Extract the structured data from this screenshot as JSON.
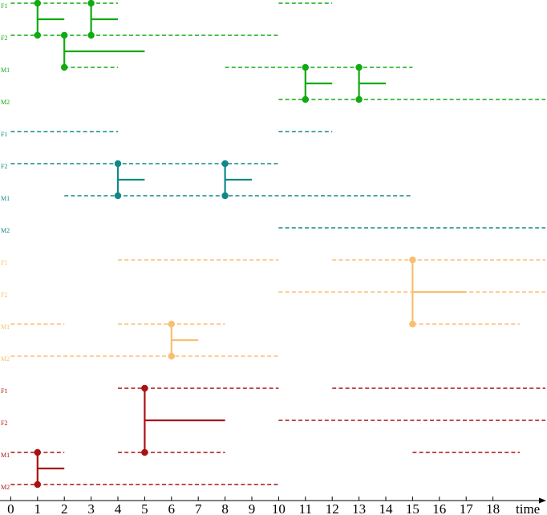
{
  "axis": {
    "label": "time",
    "ticks": [
      "0",
      "1",
      "2",
      "3",
      "4",
      "5",
      "6",
      "7",
      "8",
      "9",
      "10",
      "11",
      "12",
      "13",
      "14",
      "15",
      "16",
      "17",
      "18"
    ]
  },
  "groups": [
    {
      "id": "green",
      "color": "#11aa11",
      "rows": [
        {
          "label": "F1",
          "segments": [
            [
              0,
              4
            ],
            [
              10,
              12
            ]
          ]
        },
        {
          "label": "F2",
          "segments": [
            [
              0,
              10
            ]
          ]
        },
        {
          "label": "M1",
          "segments": [
            [
              2,
              4
            ],
            [
              8,
              15
            ]
          ]
        },
        {
          "label": "M2",
          "segments": [
            [
              10,
              20
            ]
          ]
        }
      ],
      "events": [
        {
          "t": 1,
          "from": 0,
          "to": 1,
          "end": 2
        },
        {
          "t": 3,
          "from": 0,
          "to": 1,
          "end": 4
        },
        {
          "t": 2,
          "from": 1,
          "to": 2,
          "end": 5
        },
        {
          "t": 11,
          "from": 2,
          "to": 3,
          "end": 12
        },
        {
          "t": 13,
          "from": 2,
          "to": 3,
          "end": 14
        }
      ]
    },
    {
      "id": "teal",
      "color": "#118888",
      "rows": [
        {
          "label": "F1",
          "segments": [
            [
              0,
              4
            ],
            [
              10,
              12
            ]
          ]
        },
        {
          "label": "F2",
          "segments": [
            [
              0,
              10
            ]
          ]
        },
        {
          "label": "M1",
          "segments": [
            [
              2,
              15
            ]
          ]
        },
        {
          "label": "M2",
          "segments": [
            [
              10,
              20
            ]
          ]
        }
      ],
      "events": [
        {
          "t": 4,
          "from": 1,
          "to": 2,
          "end": 5
        },
        {
          "t": 8,
          "from": 1,
          "to": 2,
          "end": 9
        }
      ]
    },
    {
      "id": "orange",
      "color": "#f7c070",
      "rows": [
        {
          "label": "F1",
          "segments": [
            [
              4,
              10
            ],
            [
              12,
              20
            ]
          ]
        },
        {
          "label": "F2",
          "segments": [
            [
              10,
              20
            ]
          ]
        },
        {
          "label": "M1",
          "segments": [
            [
              0,
              2
            ],
            [
              4,
              8
            ],
            [
              15,
              19
            ]
          ]
        },
        {
          "label": "M2",
          "segments": [
            [
              0,
              10
            ]
          ]
        }
      ],
      "events": [
        {
          "t": 15,
          "from": 0,
          "to": 2,
          "end": 17
        },
        {
          "t": 6,
          "from": 2,
          "to": 3,
          "end": 7
        }
      ]
    },
    {
      "id": "red",
      "color": "#aa1111",
      "rows": [
        {
          "label": "F1",
          "segments": [
            [
              4,
              10
            ],
            [
              12,
              20
            ]
          ]
        },
        {
          "label": "F2",
          "segments": [
            [
              10,
              20
            ]
          ]
        },
        {
          "label": "M1",
          "segments": [
            [
              0,
              2
            ],
            [
              4,
              8
            ],
            [
              15,
              19
            ]
          ]
        },
        {
          "label": "M2",
          "segments": [
            [
              0,
              10
            ]
          ]
        }
      ],
      "events": [
        {
          "t": 5,
          "from": 0,
          "to": 2,
          "end": 8
        },
        {
          "t": 1,
          "from": 2,
          "to": 3,
          "end": 2
        }
      ]
    }
  ]
}
